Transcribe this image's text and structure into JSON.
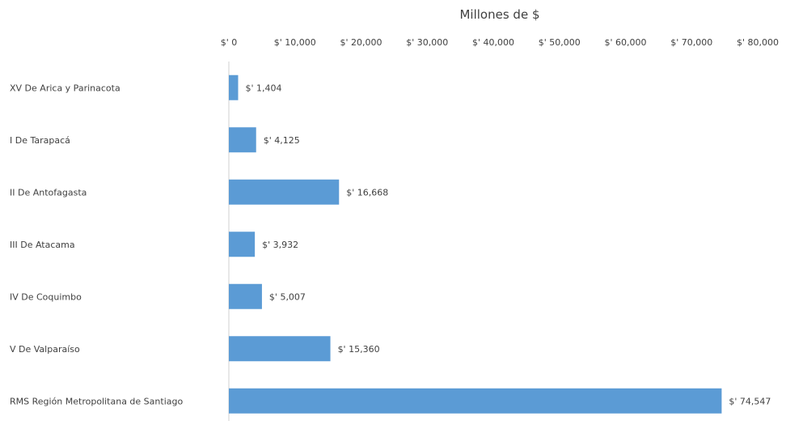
{
  "chart_data": {
    "type": "bar",
    "orientation": "horizontal",
    "title": "",
    "xlabel": "Millones de $",
    "ylabel": "",
    "xlim": [
      0,
      80000
    ],
    "x_axis_position": "top",
    "grid": false,
    "legend": "none",
    "bar_color": "#5b9bd5",
    "ticks": [
      {
        "value": 0,
        "label": "$' 0"
      },
      {
        "value": 10000,
        "label": "$' 10,000"
      },
      {
        "value": 20000,
        "label": "$' 20,000"
      },
      {
        "value": 30000,
        "label": "$' 30,000"
      },
      {
        "value": 40000,
        "label": "$' 40,000"
      },
      {
        "value": 50000,
        "label": "$' 50,000"
      },
      {
        "value": 60000,
        "label": "$' 60,000"
      },
      {
        "value": 70000,
        "label": "$' 70,000"
      },
      {
        "value": 80000,
        "label": "$' 80,000"
      }
    ],
    "categories": [
      "XV De Arica y Parinacota",
      "I De Tarapacá",
      "II De Antofagasta",
      "III De Atacama",
      "IV De Coquimbo",
      "V De Valparaíso",
      "RMS Región Metropolitana de Santiago"
    ],
    "values": [
      1404,
      4125,
      16668,
      3932,
      5007,
      15360,
      74547
    ],
    "value_labels": [
      "$' 1,404",
      "$' 4,125",
      "$' 16,668",
      "$' 3,932",
      "$' 5,007",
      "$' 15,360",
      "$' 74,547"
    ]
  }
}
